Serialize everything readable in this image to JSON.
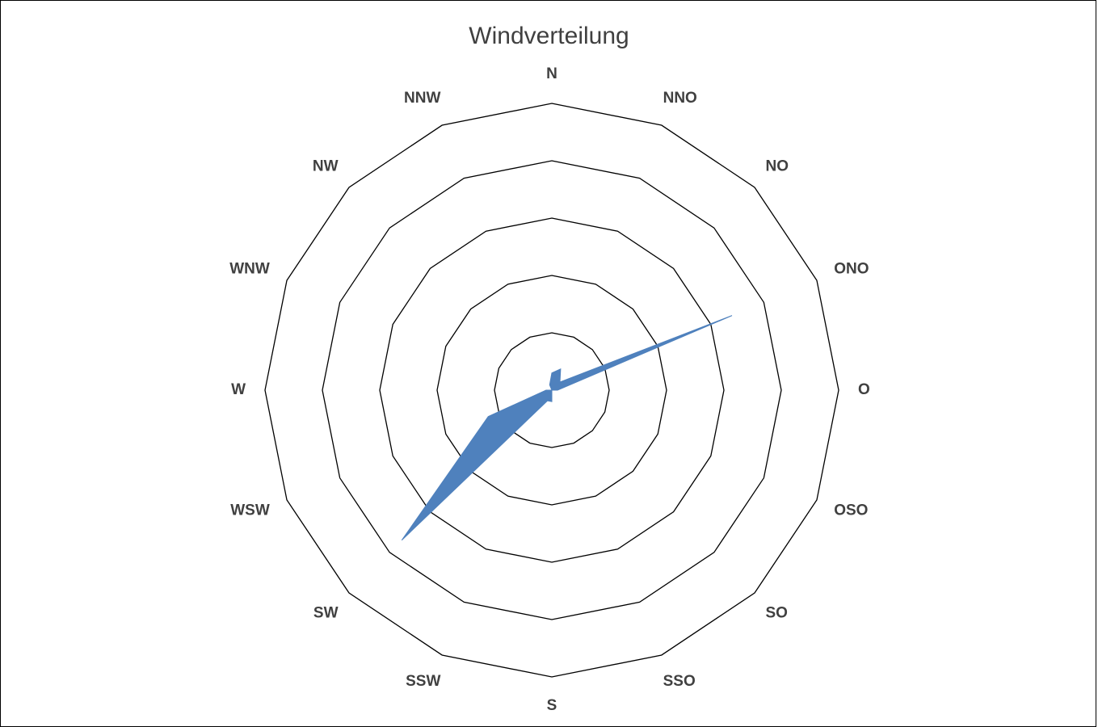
{
  "chart_data": {
    "type": "radar",
    "title": "Windverteilung",
    "categories": [
      "N",
      "NNO",
      "NO",
      "ONO",
      "O",
      "OSO",
      "SO",
      "SSO",
      "S",
      "SSW",
      "SW",
      "WSW",
      "W",
      "WNW",
      "NW",
      "NNW"
    ],
    "series": [
      {
        "values": [
          0.3,
          0.4,
          0.2,
          3.4,
          0.1,
          0.0,
          0.0,
          0.0,
          0.2,
          0.2,
          3.7,
          1.2,
          0.1,
          0.0,
          0.0,
          0.1
        ],
        "color": "#4f81bd"
      }
    ],
    "rlim": [
      0,
      5
    ],
    "rings": 5,
    "grid": true,
    "legend": "none"
  }
}
